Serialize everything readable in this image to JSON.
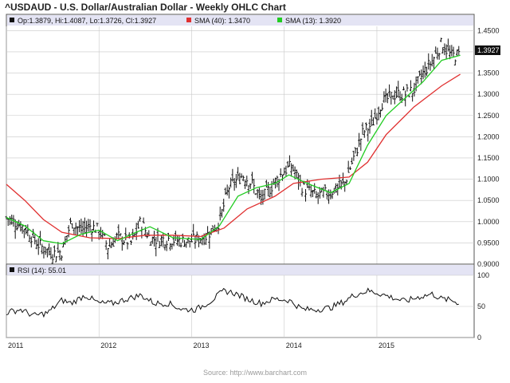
{
  "title": "^USDAUD - U.S. Dollar/Australian Dollar - Weekly OHLC Chart",
  "source": "Source: http://www.barchart.com",
  "colors": {
    "price": "#111111",
    "sma40": "#e03030",
    "sma13": "#22cc22",
    "rsi": "#111111",
    "header_bg": "#e4e4f4",
    "grid": "#c8c8c8",
    "frame": "#555555"
  },
  "legend": {
    "ohlc": "Op:1.3879, Hi:1.4087, Lo:1.3726, Cl:1.3927",
    "sma40": "SMA (40): 1.3470",
    "sma13": "SMA (13): 1.3920",
    "rsi": "RSI (14): 55.01"
  },
  "last_price_label": "1.3927",
  "chart_data": [
    {
      "type": "ohlc",
      "title": "^USDAUD - U.S. Dollar/Australian Dollar - Weekly OHLC Chart",
      "x_ticks": [
        "2011",
        "2012",
        "2013",
        "2014",
        "2015"
      ],
      "y_ticks": [
        "1.4500",
        "1.4000",
        "1.3500",
        "1.3000",
        "1.2500",
        "1.2000",
        "1.1500",
        "1.1000",
        "1.0500",
        "1.0000",
        "0.9500",
        "0.9000"
      ],
      "ylim": [
        0.9,
        1.46
      ],
      "grid": true,
      "close_approx": [
        [
          2011.0,
          1.01
        ],
        [
          2011.2,
          0.985
        ],
        [
          2011.35,
          0.945
        ],
        [
          2011.5,
          0.925
        ],
        [
          2011.6,
          0.93
        ],
        [
          2011.7,
          1.0
        ],
        [
          2011.8,
          0.98
        ],
        [
          2011.9,
          0.99
        ],
        [
          2012.0,
          0.98
        ],
        [
          2012.1,
          0.94
        ],
        [
          2012.2,
          0.965
        ],
        [
          2012.35,
          0.95
        ],
        [
          2012.45,
          1.0
        ],
        [
          2012.55,
          0.96
        ],
        [
          2012.65,
          0.958
        ],
        [
          2012.75,
          0.96
        ],
        [
          2012.85,
          0.955
        ],
        [
          2013.0,
          0.955
        ],
        [
          2013.15,
          0.965
        ],
        [
          2013.3,
          1.0
        ],
        [
          2013.4,
          1.08
        ],
        [
          2013.55,
          1.11
        ],
        [
          2013.65,
          1.09
        ],
        [
          2013.75,
          1.05
        ],
        [
          2013.85,
          1.08
        ],
        [
          2014.0,
          1.12
        ],
        [
          2014.08,
          1.13
        ],
        [
          2014.2,
          1.08
        ],
        [
          2014.35,
          1.06
        ],
        [
          2014.5,
          1.07
        ],
        [
          2014.65,
          1.09
        ],
        [
          2014.75,
          1.15
        ],
        [
          2014.85,
          1.21
        ],
        [
          2014.95,
          1.23
        ],
        [
          2015.05,
          1.28
        ],
        [
          2015.2,
          1.3
        ],
        [
          2015.3,
          1.3
        ],
        [
          2015.4,
          1.31
        ],
        [
          2015.5,
          1.35
        ],
        [
          2015.6,
          1.38
        ],
        [
          2015.7,
          1.42
        ],
        [
          2015.8,
          1.39
        ],
        [
          2015.9,
          1.393
        ]
      ],
      "series": [
        {
          "name": "SMA (40)",
          "points": [
            [
              2011.0,
              1.088
            ],
            [
              2011.2,
              1.05
            ],
            [
              2011.4,
              1.005
            ],
            [
              2011.6,
              0.975
            ],
            [
              2011.9,
              0.962
            ],
            [
              2012.2,
              0.96
            ],
            [
              2012.5,
              0.968
            ],
            [
              2012.8,
              0.968
            ],
            [
              2013.1,
              0.965
            ],
            [
              2013.35,
              0.985
            ],
            [
              2013.6,
              1.03
            ],
            [
              2013.9,
              1.06
            ],
            [
              2014.1,
              1.09
            ],
            [
              2014.4,
              1.1
            ],
            [
              2014.7,
              1.105
            ],
            [
              2014.9,
              1.14
            ],
            [
              2015.1,
              1.205
            ],
            [
              2015.4,
              1.27
            ],
            [
              2015.7,
              1.32
            ],
            [
              2015.9,
              1.347
            ]
          ]
        },
        {
          "name": "SMA (13)",
          "points": [
            [
              2011.0,
              1.01
            ],
            [
              2011.2,
              0.99
            ],
            [
              2011.4,
              0.955
            ],
            [
              2011.6,
              0.948
            ],
            [
              2011.8,
              0.97
            ],
            [
              2012.0,
              0.98
            ],
            [
              2012.2,
              0.955
            ],
            [
              2012.4,
              0.975
            ],
            [
              2012.55,
              0.988
            ],
            [
              2012.8,
              0.962
            ],
            [
              2013.1,
              0.958
            ],
            [
              2013.3,
              0.99
            ],
            [
              2013.5,
              1.06
            ],
            [
              2013.7,
              1.08
            ],
            [
              2013.9,
              1.09
            ],
            [
              2014.05,
              1.11
            ],
            [
              2014.25,
              1.09
            ],
            [
              2014.5,
              1.068
            ],
            [
              2014.7,
              1.09
            ],
            [
              2014.9,
              1.18
            ],
            [
              2015.1,
              1.25
            ],
            [
              2015.3,
              1.29
            ],
            [
              2015.5,
              1.33
            ],
            [
              2015.7,
              1.38
            ],
            [
              2015.9,
              1.392
            ]
          ]
        }
      ]
    },
    {
      "type": "line",
      "title": "RSI (14): 55.01",
      "y_ticks": [
        "100",
        "50",
        "0"
      ],
      "ylim": [
        0,
        100
      ],
      "grid": true,
      "series": [
        {
          "name": "RSI (14)",
          "points": [
            [
              2011.0,
              40
            ],
            [
              2011.15,
              45
            ],
            [
              2011.3,
              35
            ],
            [
              2011.45,
              40
            ],
            [
              2011.6,
              60
            ],
            [
              2011.7,
              55
            ],
            [
              2011.85,
              68
            ],
            [
              2012.0,
              55
            ],
            [
              2012.15,
              55
            ],
            [
              2012.3,
              62
            ],
            [
              2012.45,
              68
            ],
            [
              2012.6,
              55
            ],
            [
              2012.75,
              55
            ],
            [
              2012.9,
              45
            ],
            [
              2013.05,
              45
            ],
            [
              2013.2,
              58
            ],
            [
              2013.35,
              75
            ],
            [
              2013.45,
              72
            ],
            [
              2013.6,
              62
            ],
            [
              2013.75,
              55
            ],
            [
              2013.9,
              62
            ],
            [
              2014.05,
              60
            ],
            [
              2014.2,
              45
            ],
            [
              2014.35,
              45
            ],
            [
              2014.5,
              48
            ],
            [
              2014.65,
              58
            ],
            [
              2014.75,
              68
            ],
            [
              2014.9,
              75
            ],
            [
              2015.0,
              72
            ],
            [
              2015.15,
              65
            ],
            [
              2015.3,
              58
            ],
            [
              2015.45,
              65
            ],
            [
              2015.6,
              70
            ],
            [
              2015.7,
              62
            ],
            [
              2015.8,
              60
            ],
            [
              2015.9,
              55
            ]
          ]
        }
      ]
    }
  ]
}
